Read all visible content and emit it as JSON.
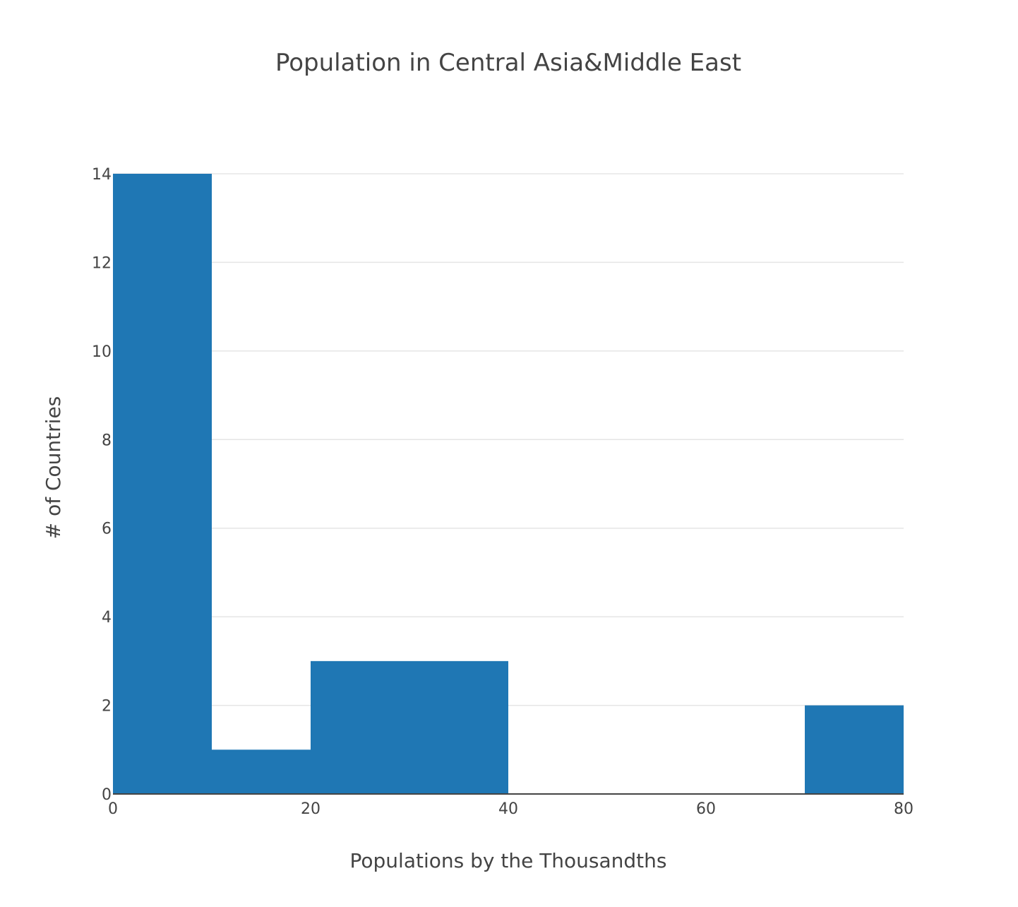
{
  "chart_data": {
    "type": "bar",
    "subtype": "histogram",
    "title": "Population in Central Asia&Middle East",
    "xlabel": "Populations by the Thousandths",
    "ylabel": "# of Countries",
    "bin_edges": [
      0,
      10,
      20,
      30,
      40,
      50,
      60,
      70,
      80
    ],
    "values": [
      14,
      1,
      3,
      3,
      0,
      0,
      0,
      2
    ],
    "xlim": [
      0,
      80
    ],
    "ylim": [
      0,
      14
    ],
    "x_ticks": [
      0,
      20,
      40,
      60,
      80
    ],
    "y_ticks": [
      0,
      2,
      4,
      6,
      8,
      10,
      12,
      14
    ],
    "grid": true,
    "legend": "none",
    "colors": {
      "bar": "#1f77b4",
      "grid": "#e5e5e5",
      "axis_line": "#444444",
      "text": "#444444",
      "background": "#ffffff"
    }
  }
}
